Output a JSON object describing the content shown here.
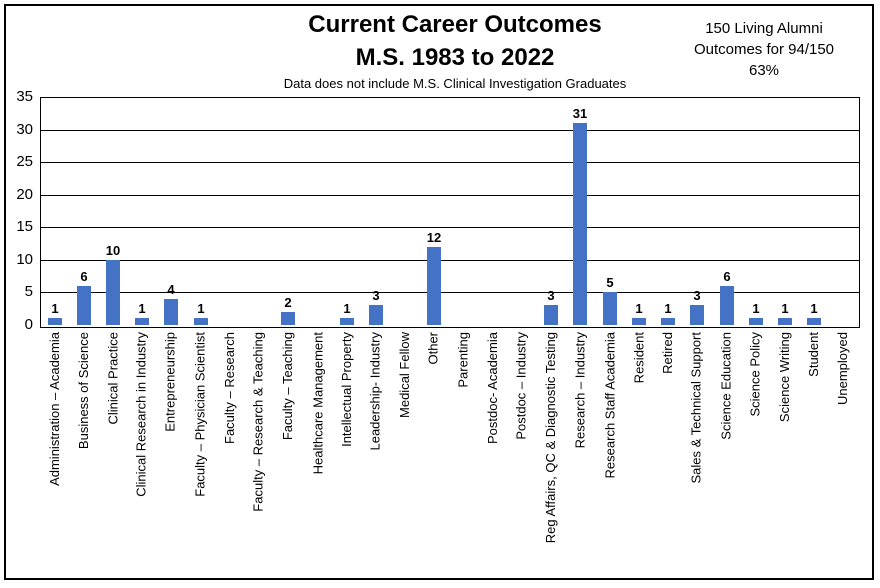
{
  "figure": {
    "title_line1": "Current Career Outcomes",
    "title_line2": "M.S. 1983 to 2022",
    "subtitle": "Data does not include M.S. Clinical Investigation Graduates",
    "annotation": {
      "line1": "150 Living Alumni",
      "line2": "Outcomes for 94/150",
      "line3": "63%"
    }
  },
  "chart_data": {
    "type": "bar",
    "title": "Current Career Outcomes M.S. 1983 to 2022",
    "subtitle": "Data does not include M.S. Clinical Investigation Graduates",
    "annotation": "150 Living Alumni Outcomes for 94/150 63%",
    "categories": [
      "Administration – Academia",
      "Business of Science",
      "Clinical Practice",
      "Clinical Research in Industry",
      "Entrepreneurship",
      "Faculty – Physician Scientist",
      "Faculty – Research",
      "Faculty – Research & Teaching",
      "Faculty – Teaching",
      "Healthcare Management",
      "Intellectual Property",
      "Leadership- Industry",
      "Medical Fellow",
      "Other",
      "Parenting",
      "Postdoc- Academia",
      "Postdoc – Industry",
      "Reg Affairs, QC & Diagnostic Testing",
      "Research – Industry",
      "Research Staff Academia",
      "Resident",
      "Retired",
      "Sales & Technical Support",
      "Science Education",
      "Science Policy",
      "Science Writing",
      "Student",
      "Unemployed"
    ],
    "values": [
      1,
      6,
      10,
      1,
      4,
      1,
      0,
      0,
      2,
      0,
      1,
      3,
      0,
      12,
      0,
      0,
      0,
      3,
      31,
      5,
      1,
      1,
      3,
      6,
      1,
      1,
      1,
      0
    ],
    "xlabel": "",
    "ylabel": "",
    "ylim": [
      0,
      35
    ],
    "y_ticks": [
      0,
      5,
      10,
      15,
      20,
      25,
      30,
      35
    ],
    "grid": true,
    "bar_color": "#4472C4",
    "legend": "none",
    "value_labels_shown_for_nonzero_bars": true
  }
}
